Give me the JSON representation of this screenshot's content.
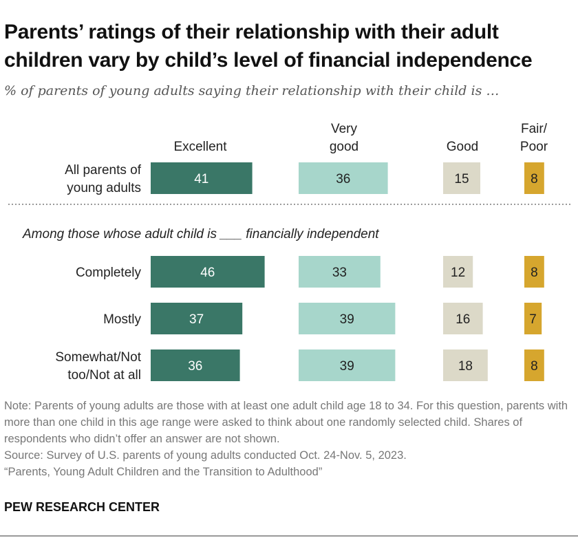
{
  "title": "Parents’ ratings of their relationship with their adult children vary by child’s level of financial independence",
  "subtitle": "% of parents of young adults saying their relationship with their child is …",
  "chart_data": {
    "type": "bar",
    "orientation": "horizontal",
    "series": [
      {
        "name": "Excellent",
        "header_lines": [
          "Excellent"
        ],
        "color": "#3a7767",
        "label_color": "#ffffff"
      },
      {
        "name": "Very good",
        "header_lines": [
          "Very",
          "good"
        ],
        "color": "#a7d6cb",
        "label_color": "#222222"
      },
      {
        "name": "Good",
        "header_lines": [
          "Good"
        ],
        "color": "#dcd9c8",
        "label_color": "#222222"
      },
      {
        "name": "Fair/Poor",
        "header_lines": [
          "Fair/",
          "Poor"
        ],
        "color": "#d6a62e",
        "label_color": "#222222"
      }
    ],
    "categories": [
      {
        "label_lines": [
          "All parents of",
          "young adults"
        ],
        "values": [
          41,
          36,
          15,
          8
        ]
      },
      {
        "label_lines": [
          "Completely"
        ],
        "values": [
          46,
          33,
          12,
          8
        ]
      },
      {
        "label_lines": [
          "Mostly"
        ],
        "values": [
          37,
          39,
          16,
          7
        ]
      },
      {
        "label_lines": [
          "Somewhat/Not",
          "too/Not at all"
        ],
        "values": [
          36,
          39,
          18,
          8
        ]
      }
    ],
    "group_heading": "Among those whose adult child is ___ financially independent",
    "grid": false
  },
  "note": "Note: Parents of young adults are those with at least one adult child age 18 to 34. For this question, parents with more than one child in this age range were asked to think about one randomly selected child. Shares of respondents who didn’t offer an answer are not shown.",
  "source": "Source: Survey of U.S. parents of young adults conducted Oct. 24-Nov. 5, 2023.",
  "report": "“Parents, Young Adult Children and the Transition to Adulthood”",
  "brand": "PEW RESEARCH CENTER"
}
